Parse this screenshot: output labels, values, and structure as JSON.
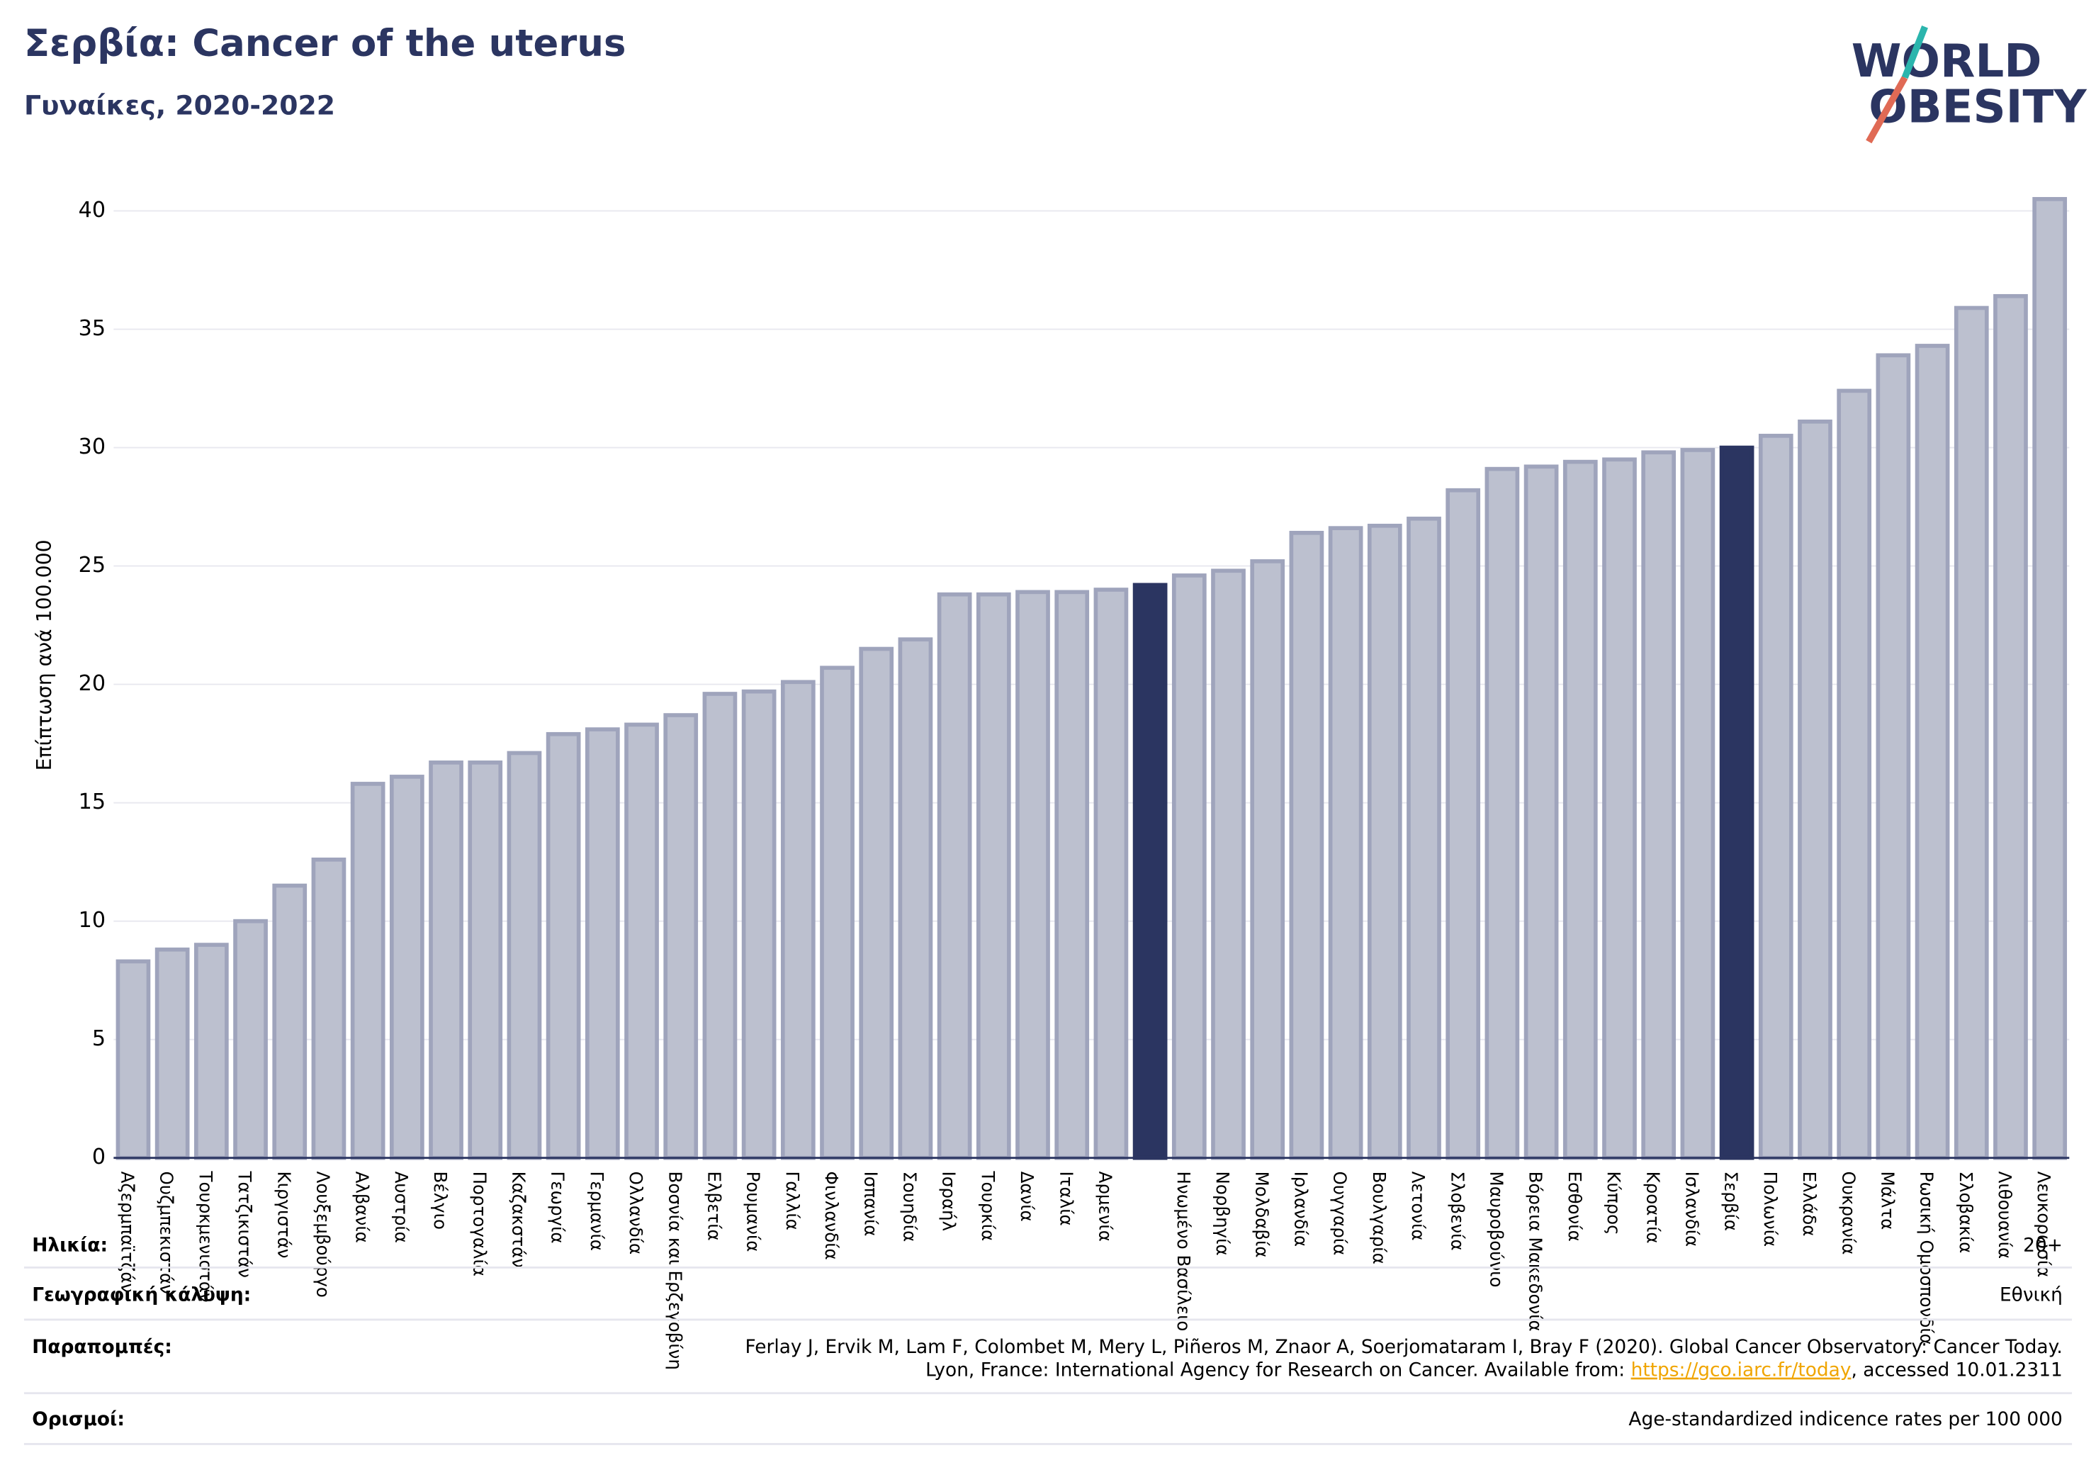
{
  "chart_data": {
    "type": "bar",
    "title": "Σερβία: Cancer of the uterus",
    "subtitle": "Γυναίκες, 2020-2022",
    "logo": [
      "WORLD",
      "OBESITY"
    ],
    "y_label": "Επίπτωση ανά 100.000",
    "categories": [
      "Αζερμπαϊτζάν",
      "Ουζμπεκιστάν",
      "Τουρκμενιστάν",
      "Τατζικιστάν",
      "Κιργιστάν",
      "Λουξεμβούργο",
      "Αλβανία",
      "Αυστρία",
      "Βέλγιο",
      "Πορτογαλία",
      "Καζακστάν",
      "Γεωργία",
      "Γερμανία",
      "Ολλανδία",
      "Βοσνία και Ερζεγοβίνη",
      "Ελβετία",
      "Ρουμανία",
      "Γαλλία",
      "Φινλανδία",
      "Ισπανία",
      "Σουηδία",
      "Ισραήλ",
      "Τουρκία",
      "Δανία",
      "Ιταλία",
      "Αρμενία",
      null,
      "Ηνωμένο Βασίλειο",
      "Νορβηγία",
      "Μολδαβία",
      "Ιρλανδία",
      "Ουγγαρία",
      "Βουλγαρία",
      "Λετονία",
      "Σλοβενία",
      "Μαυροβούνιο",
      "Βόρεια Μακεδονία",
      "Εσθονία",
      "Κύπρος",
      "Κροατία",
      "Ισλανδία",
      "Σερβία",
      "Πολωνία",
      "Ελλάδα",
      "Ουκρανία",
      "Μάλτα",
      "Ρωσική Ομοσπονδία",
      "Σλοβακία",
      "Λιθουανία",
      "Λευκορωσία"
    ],
    "values": [
      8.3,
      8.8,
      9.0,
      10.0,
      11.5,
      12.6,
      15.8,
      16.1,
      16.7,
      16.7,
      17.1,
      17.9,
      18.1,
      18.3,
      18.7,
      19.6,
      19.7,
      20.1,
      20.7,
      21.5,
      21.9,
      23.8,
      23.8,
      23.9,
      23.9,
      24.0,
      24.2,
      24.6,
      24.8,
      25.2,
      26.4,
      26.6,
      26.7,
      27.0,
      28.2,
      29.1,
      29.2,
      29.4,
      29.5,
      29.8,
      29.9,
      30.0,
      30.5,
      31.1,
      32.4,
      33.9,
      34.3,
      35.9,
      36.4,
      40.5
    ],
    "colors": [
      "#bcc0cf",
      "#bcc0cf",
      "#bcc0cf",
      "#bcc0cf",
      "#bcc0cf",
      "#bcc0cf",
      "#bcc0cf",
      "#bcc0cf",
      "#bcc0cf",
      "#bcc0cf",
      "#bcc0cf",
      "#bcc0cf",
      "#bcc0cf",
      "#bcc0cf",
      "#bcc0cf",
      "#bcc0cf",
      "#bcc0cf",
      "#bcc0cf",
      "#bcc0cf",
      "#bcc0cf",
      "#bcc0cf",
      "#bcc0cf",
      "#bcc0cf",
      "#bcc0cf",
      "#bcc0cf",
      "#bcc0cf",
      "#2b3561",
      "#bcc0cf",
      "#bcc0cf",
      "#bcc0cf",
      "#bcc0cf",
      "#bcc0cf",
      "#bcc0cf",
      "#bcc0cf",
      "#bcc0cf",
      "#bcc0cf",
      "#bcc0cf",
      "#bcc0cf",
      "#bcc0cf",
      "#bcc0cf",
      "#bcc0cf",
      "#2b3561",
      "#bcc0cf",
      "#bcc0cf",
      "#bcc0cf",
      "#bcc0cf",
      "#bcc0cf",
      "#bcc0cf",
      "#bcc0cf",
      "#bcc0cf"
    ],
    "ylim": [
      0,
      41
    ],
    "yticks": [
      0,
      5,
      10,
      15,
      20,
      25,
      30,
      35,
      40
    ],
    "grid": true,
    "footer": [
      {
        "label": "Ηλικία:",
        "value": [
          "20+"
        ]
      },
      {
        "label": "Γεωγραφική κάλυψη:",
        "value": [
          "Εθνική"
        ]
      },
      {
        "label": "Παραπομπές:",
        "value": [
          "Ferlay J, Ervik M, Lam F, Colombet M, Mery L, Piñeros M, Znaor A, Soerjomataram I, Bray F (2020). Global Cancer Observatory: Cancer Today.",
          "Lyon, France: International Agency for Research on Cancer. Available from: ",
          "https://gco.iarc.fr/today",
          ", accessed 10.01.2311"
        ]
      },
      {
        "label": "Ορισμοί:",
        "value": [
          "Age-standardized indicence rates per 100 000"
        ]
      }
    ]
  }
}
